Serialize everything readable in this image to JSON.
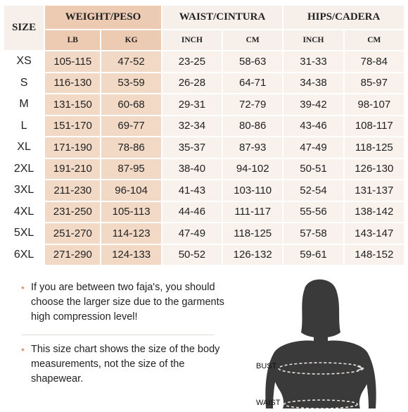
{
  "headers": {
    "size": "SIZE",
    "weight": "WEIGHT/PESO",
    "waist": "WAIST/CINTURA",
    "hips": "HIPS/CADERA",
    "lb": "LB",
    "kg": "KG",
    "waist_inch": "INCH",
    "waist_cm": "CM",
    "hips_inch": "INCH",
    "hips_cm": "CM"
  },
  "rows": [
    {
      "size": "XS",
      "lb": "105-115",
      "kg": "47-52",
      "waist_inch": "23-25",
      "waist_cm": "58-63",
      "hips_inch": "31-33",
      "hips_cm": "78-84"
    },
    {
      "size": "S",
      "lb": "116-130",
      "kg": "53-59",
      "waist_inch": "26-28",
      "waist_cm": "64-71",
      "hips_inch": "34-38",
      "hips_cm": "85-97"
    },
    {
      "size": "M",
      "lb": "131-150",
      "kg": "60-68",
      "waist_inch": "29-31",
      "waist_cm": "72-79",
      "hips_inch": "39-42",
      "hips_cm": "98-107"
    },
    {
      "size": "L",
      "lb": "151-170",
      "kg": "69-77",
      "waist_inch": "32-34",
      "waist_cm": "80-86",
      "hips_inch": "43-46",
      "hips_cm": "108-117"
    },
    {
      "size": "XL",
      "lb": "171-190",
      "kg": "78-86",
      "waist_inch": "35-37",
      "waist_cm": "87-93",
      "hips_inch": "47-49",
      "hips_cm": "118-125"
    },
    {
      "size": "2XL",
      "lb": "191-210",
      "kg": "87-95",
      "waist_inch": "38-40",
      "waist_cm": "94-102",
      "hips_inch": "50-51",
      "hips_cm": "126-130"
    },
    {
      "size": "3XL",
      "lb": "211-230",
      "kg": "96-104",
      "waist_inch": "41-43",
      "waist_cm": "103-110",
      "hips_inch": "52-54",
      "hips_cm": "131-137"
    },
    {
      "size": "4XL",
      "lb": "231-250",
      "kg": "105-113",
      "waist_inch": "44-46",
      "waist_cm": "111-117",
      "hips_inch": "55-56",
      "hips_cm": "138-142"
    },
    {
      "size": "5XL",
      "lb": "251-270",
      "kg": "114-123",
      "waist_inch": "47-49",
      "waist_cm": "118-125",
      "hips_inch": "57-58",
      "hips_cm": "143-147"
    },
    {
      "size": "6XL",
      "lb": "271-290",
      "kg": "124-133",
      "waist_inch": "50-52",
      "waist_cm": "126-132",
      "hips_inch": "59-61",
      "hips_cm": "148-152"
    }
  ],
  "notes": [
    "If you are between two faja's, you should choose the larger size due to the garments high compression level!",
    "This size chart shows the size of the body measurements, not the size of the shapewear."
  ],
  "figure": {
    "bust_label": "BUST",
    "waist_label": "WAIST"
  },
  "colors": {
    "weight_header": "#eccbb2",
    "weight_cell": "#f2d9c6",
    "other_cell": "#f8f1ec",
    "silhouette": "#3a3a3a",
    "bullet": "#e39a73"
  }
}
